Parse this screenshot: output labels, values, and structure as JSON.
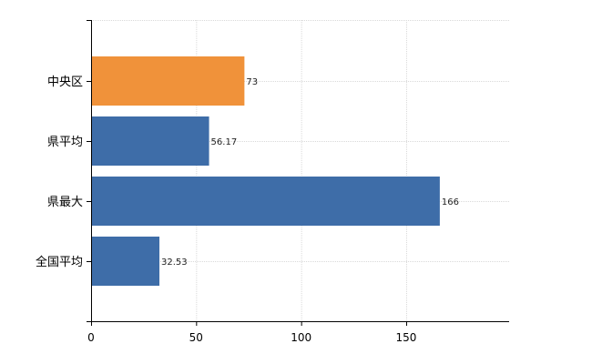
{
  "chart_data": {
    "type": "bar",
    "orientation": "horizontal",
    "categories": [
      "中央区",
      "県平均",
      "県最大",
      "全国平均"
    ],
    "values": [
      73,
      56.17,
      166,
      32.53
    ],
    "value_labels": [
      "73",
      "56.17",
      "166",
      "32.53"
    ],
    "highlight_category": "中央区",
    "colors": {
      "highlight": "#F0923A",
      "default": "#3E6DA8"
    },
    "xlim": [
      0,
      199
    ],
    "xticks": [
      0,
      50,
      100,
      150
    ],
    "grid": true,
    "legend": "none",
    "title": "",
    "xlabel": "",
    "ylabel": ""
  }
}
